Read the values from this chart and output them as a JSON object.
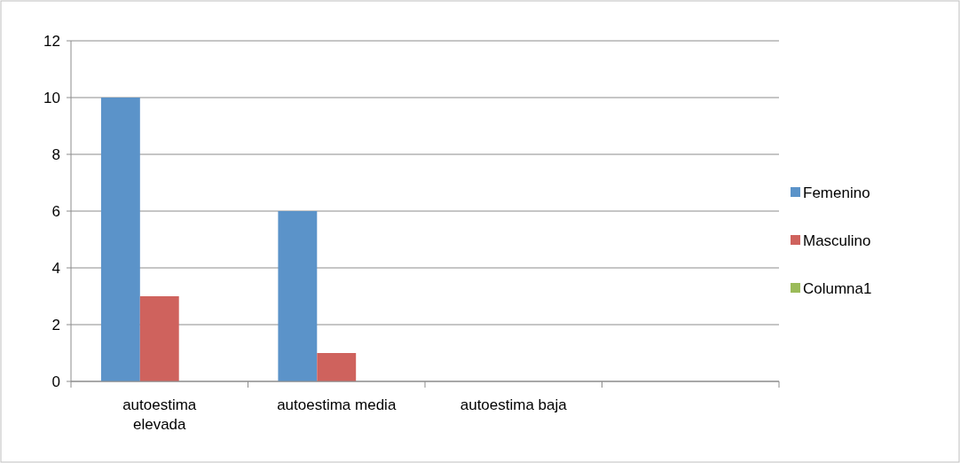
{
  "chart_data": {
    "type": "bar",
    "categories": [
      "autoestima elevada",
      "autoestima media",
      "autoestima baja",
      null
    ],
    "series": [
      {
        "name": "Femenino",
        "color": "#5b93c9",
        "values": [
          10,
          6,
          0,
          null
        ]
      },
      {
        "name": "Masculino",
        "color": "#cf625d",
        "values": [
          3,
          1,
          0,
          null
        ]
      },
      {
        "name": "Columna1",
        "color": "#9bbb59",
        "values": [
          null,
          null,
          null,
          null
        ]
      }
    ],
    "ylim": [
      0,
      12
    ],
    "yticks": [
      0,
      2,
      4,
      6,
      8,
      10,
      12
    ],
    "grid": "y",
    "legend": "right"
  }
}
